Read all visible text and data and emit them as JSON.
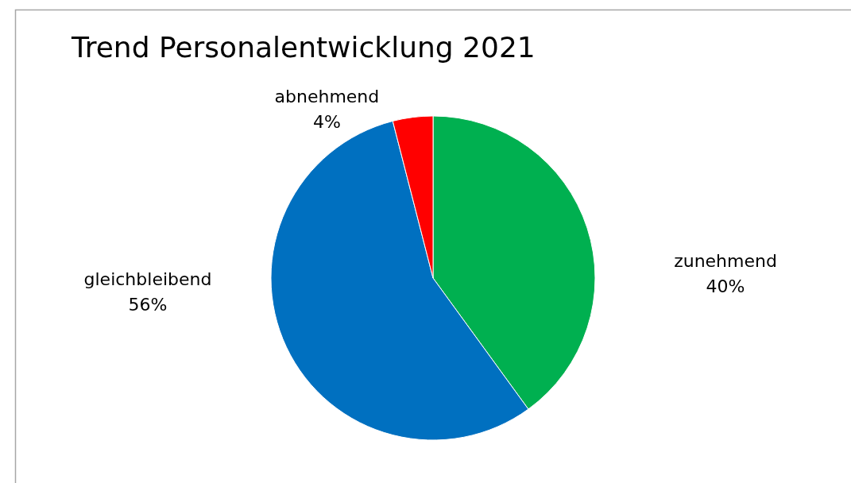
{
  "chart_data": {
    "type": "pie",
    "title": "Trend Personalentwicklung 2021",
    "categories": [
      "zunehmend",
      "gleichbleibend",
      "abnehmend"
    ],
    "values": [
      40,
      56,
      4
    ],
    "colors": [
      "#00b050",
      "#0070c0",
      "#ff0000"
    ],
    "value_labels": [
      "40%",
      "56%",
      "4%"
    ]
  }
}
